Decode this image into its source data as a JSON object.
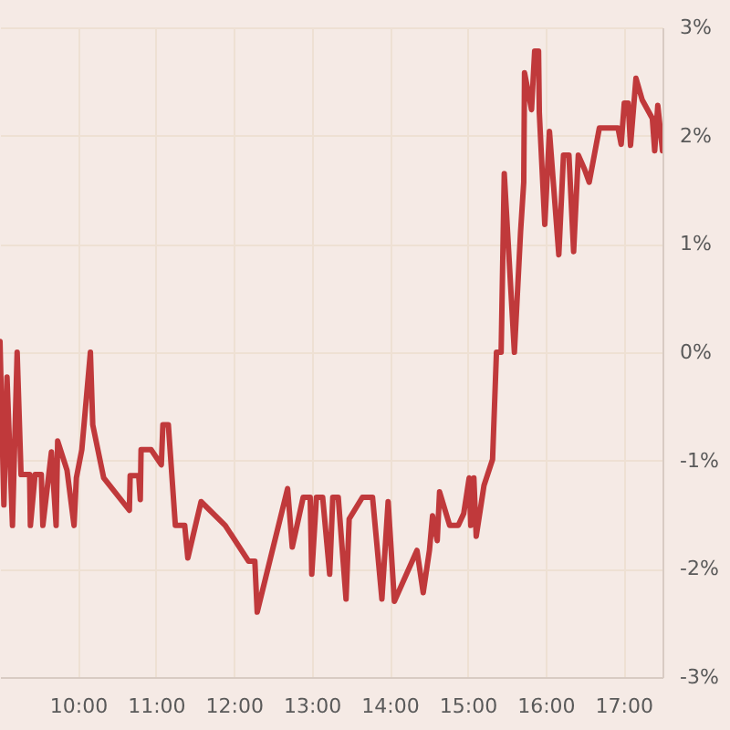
{
  "chart_data": {
    "type": "line",
    "x": [
      9.0,
      9.05,
      9.09,
      9.16,
      9.22,
      9.27,
      9.38,
      9.39,
      9.45,
      9.53,
      9.55,
      9.66,
      9.72,
      9.74,
      9.86,
      9.95,
      9.98,
      10.05,
      10.16,
      10.19,
      10.33,
      10.66,
      10.67,
      10.78,
      10.8,
      10.81,
      10.94,
      11.07,
      11.09,
      11.16,
      11.25,
      11.37,
      11.41,
      11.58,
      11.89,
      12.19,
      12.27,
      12.3,
      12.69,
      12.75,
      12.89,
      12.98,
      13.0,
      13.06,
      13.14,
      13.23,
      13.27,
      13.34,
      13.44,
      13.48,
      13.65,
      13.78,
      13.9,
      13.98,
      14.06,
      14.35,
      14.43,
      14.51,
      14.55,
      14.61,
      14.64,
      14.77,
      14.88,
      14.95,
      15.02,
      15.04,
      15.08,
      15.11,
      15.21,
      15.32,
      15.37,
      15.43,
      15.47,
      15.6,
      15.68,
      15.72,
      15.73,
      15.82,
      15.86,
      15.91,
      15.92,
      15.99,
      16.05,
      16.17,
      16.23,
      16.3,
      16.36,
      16.42,
      16.5,
      16.56,
      16.69,
      16.93,
      16.97,
      17.01,
      17.06,
      17.09,
      17.16,
      17.24,
      17.37,
      17.4,
      17.44,
      17.5
    ],
    "series": [
      {
        "color": "#c0393b",
        "values": [
          0.1,
          -1.41,
          -0.23,
          -1.6,
          0.0,
          -1.13,
          -1.13,
          -1.6,
          -1.13,
          -1.13,
          -1.6,
          -0.92,
          -1.6,
          -0.82,
          -1.09,
          -1.6,
          -1.16,
          -0.9,
          0.0,
          -0.67,
          -1.16,
          -1.46,
          -1.14,
          -1.14,
          -1.36,
          -0.9,
          -0.9,
          -1.04,
          -0.67,
          -0.67,
          -1.6,
          -1.6,
          -1.9,
          -1.38,
          -1.6,
          -1.93,
          -1.93,
          -2.4,
          -1.26,
          -1.8,
          -1.34,
          -1.34,
          -2.05,
          -1.34,
          -1.34,
          -2.05,
          -1.34,
          -1.34,
          -2.28,
          -1.54,
          -1.34,
          -1.34,
          -2.28,
          -1.38,
          -2.3,
          -1.83,
          -2.22,
          -1.83,
          -1.51,
          -1.74,
          -1.29,
          -1.6,
          -1.6,
          -1.49,
          -1.16,
          -1.6,
          -1.16,
          -1.7,
          -1.23,
          -0.99,
          0.0,
          0.0,
          1.65,
          0.0,
          1.12,
          1.57,
          2.58,
          2.24,
          2.78,
          2.78,
          2.21,
          1.18,
          2.04,
          0.9,
          1.82,
          1.82,
          0.93,
          1.82,
          1.69,
          1.57,
          2.07,
          2.07,
          1.92,
          2.3,
          2.3,
          1.91,
          2.53,
          2.33,
          2.16,
          1.86,
          2.28,
          1.86
        ]
      }
    ],
    "xlim": [
      9,
      17.5
    ],
    "xticks": [
      {
        "value": 10,
        "label": "10:00"
      },
      {
        "value": 11,
        "label": "11:00"
      },
      {
        "value": 12,
        "label": "12:00"
      },
      {
        "value": 13,
        "label": "13:00"
      },
      {
        "value": 14,
        "label": "14:00"
      },
      {
        "value": 15,
        "label": "15:00"
      },
      {
        "value": 16,
        "label": "16:00"
      },
      {
        "value": 17,
        "label": "17:00"
      }
    ],
    "ylim": [
      -3,
      3
    ],
    "yticks": [
      {
        "value": -3,
        "label": "-3%"
      },
      {
        "value": -2,
        "label": "-2%"
      },
      {
        "value": -1,
        "label": "-1%"
      },
      {
        "value": 0,
        "label": "0%"
      },
      {
        "value": 1,
        "label": "1%"
      },
      {
        "value": 2,
        "label": "2%"
      },
      {
        "value": 3,
        "label": "3%"
      }
    ],
    "grid": true
  }
}
